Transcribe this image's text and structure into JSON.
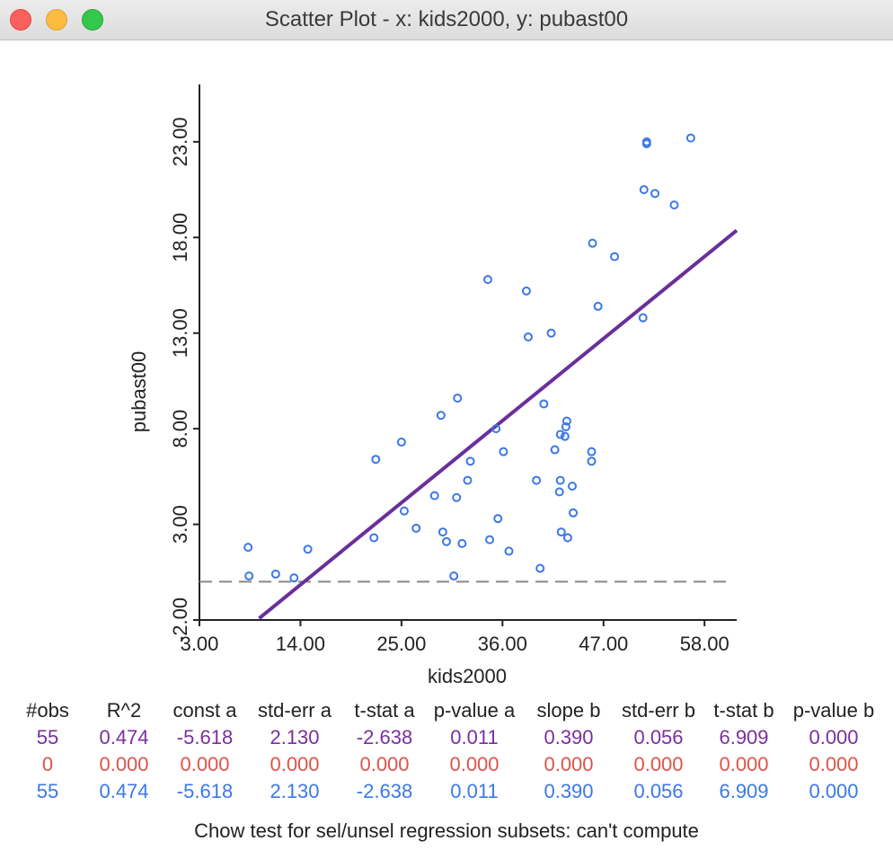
{
  "window": {
    "title": "Scatter Plot - x: kids2000, y: pubast00"
  },
  "icons": {
    "close": "close-icon",
    "minimize": "minimize-icon",
    "zoom": "zoom-icon"
  },
  "colors": {
    "points": "#3b78e7",
    "regression_line": "#6a2f9c",
    "row_all": "#7b2f9e",
    "row_selected": "#e0524a",
    "row_unselected": "#3b78e7",
    "zero_line": "#888888"
  },
  "chart_data": {
    "type": "scatter",
    "title": "",
    "xlabel": "kids2000",
    "ylabel": "pubast00",
    "xlim": [
      3.0,
      61.5
    ],
    "ylim": [
      -2.0,
      26.0
    ],
    "x_ticks": [
      "3.00",
      "14.00",
      "25.00",
      "36.00",
      "47.00",
      "58.00"
    ],
    "x_tick_values": [
      3,
      14,
      25,
      36,
      47,
      58
    ],
    "y_ticks": [
      "-2.00",
      "3.00",
      "8.00",
      "13.00",
      "18.00",
      "23.00"
    ],
    "y_tick_values": [
      -2,
      3,
      8,
      13,
      18,
      23
    ],
    "regression": {
      "intercept": -5.618,
      "slope": 0.39,
      "x_start": 9.5,
      "x_end": 61.5
    },
    "zero_line_y": 0,
    "points": [
      {
        "x": 8.3,
        "y": 1.8
      },
      {
        "x": 8.4,
        "y": 0.3
      },
      {
        "x": 11.3,
        "y": 0.4
      },
      {
        "x": 13.3,
        "y": 0.2
      },
      {
        "x": 14.8,
        "y": 1.7
      },
      {
        "x": 22.0,
        "y": 2.3
      },
      {
        "x": 22.2,
        "y": 6.4
      },
      {
        "x": 25.0,
        "y": 7.3
      },
      {
        "x": 25.3,
        "y": 3.7
      },
      {
        "x": 26.6,
        "y": 2.8
      },
      {
        "x": 28.6,
        "y": 4.5
      },
      {
        "x": 29.3,
        "y": 8.7
      },
      {
        "x": 29.5,
        "y": 2.6
      },
      {
        "x": 29.9,
        "y": 2.1
      },
      {
        "x": 30.7,
        "y": 0.3
      },
      {
        "x": 31.0,
        "y": 4.4
      },
      {
        "x": 31.1,
        "y": 9.6
      },
      {
        "x": 31.6,
        "y": 2.0
      },
      {
        "x": 32.2,
        "y": 5.3
      },
      {
        "x": 32.5,
        "y": 6.3
      },
      {
        "x": 34.4,
        "y": 15.8
      },
      {
        "x": 34.6,
        "y": 2.2
      },
      {
        "x": 35.3,
        "y": 8.0
      },
      {
        "x": 35.5,
        "y": 3.3
      },
      {
        "x": 36.1,
        "y": 6.8
      },
      {
        "x": 36.7,
        "y": 1.6
      },
      {
        "x": 39.7,
        "y": 5.3
      },
      {
        "x": 40.1,
        "y": 0.7
      },
      {
        "x": 40.5,
        "y": 9.3
      },
      {
        "x": 38.6,
        "y": 15.2
      },
      {
        "x": 38.8,
        "y": 12.8
      },
      {
        "x": 41.3,
        "y": 13.0
      },
      {
        "x": 41.7,
        "y": 6.9
      },
      {
        "x": 42.2,
        "y": 4.7
      },
      {
        "x": 42.3,
        "y": 5.3
      },
      {
        "x": 42.3,
        "y": 7.7
      },
      {
        "x": 42.4,
        "y": 2.6
      },
      {
        "x": 42.8,
        "y": 7.6
      },
      {
        "x": 42.9,
        "y": 8.1
      },
      {
        "x": 43.0,
        "y": 8.4
      },
      {
        "x": 43.1,
        "y": 2.3
      },
      {
        "x": 43.6,
        "y": 5.0
      },
      {
        "x": 43.7,
        "y": 3.6
      },
      {
        "x": 45.7,
        "y": 6.8
      },
      {
        "x": 45.7,
        "y": 6.3
      },
      {
        "x": 45.8,
        "y": 17.7
      },
      {
        "x": 46.4,
        "y": 14.4
      },
      {
        "x": 48.2,
        "y": 17.0
      },
      {
        "x": 51.3,
        "y": 13.8
      },
      {
        "x": 51.4,
        "y": 20.5
      },
      {
        "x": 51.7,
        "y": 22.9
      },
      {
        "x": 51.7,
        "y": 23.0
      },
      {
        "x": 52.6,
        "y": 20.3
      },
      {
        "x": 54.7,
        "y": 19.7
      },
      {
        "x": 56.5,
        "y": 23.2
      }
    ]
  },
  "stats": {
    "headers": [
      "#obs",
      "R^2",
      "const a",
      "std-err a",
      "t-stat a",
      "p-value a",
      "slope b",
      "std-err b",
      "t-stat b",
      "p-value b"
    ],
    "rows": [
      {
        "kind": "all",
        "values": [
          "55",
          "0.474",
          "-5.618",
          "2.130",
          "-2.638",
          "0.011",
          "0.390",
          "0.056",
          "6.909",
          "0.000"
        ]
      },
      {
        "kind": "selected",
        "values": [
          "0",
          "0.000",
          "0.000",
          "0.000",
          "0.000",
          "0.000",
          "0.000",
          "0.000",
          "0.000",
          "0.000"
        ]
      },
      {
        "kind": "unselected",
        "values": [
          "55",
          "0.474",
          "-5.618",
          "2.130",
          "-2.638",
          "0.011",
          "0.390",
          "0.056",
          "6.909",
          "0.000"
        ]
      }
    ]
  },
  "chow": {
    "text": "Chow test for sel/unsel regression subsets: can't compute"
  }
}
